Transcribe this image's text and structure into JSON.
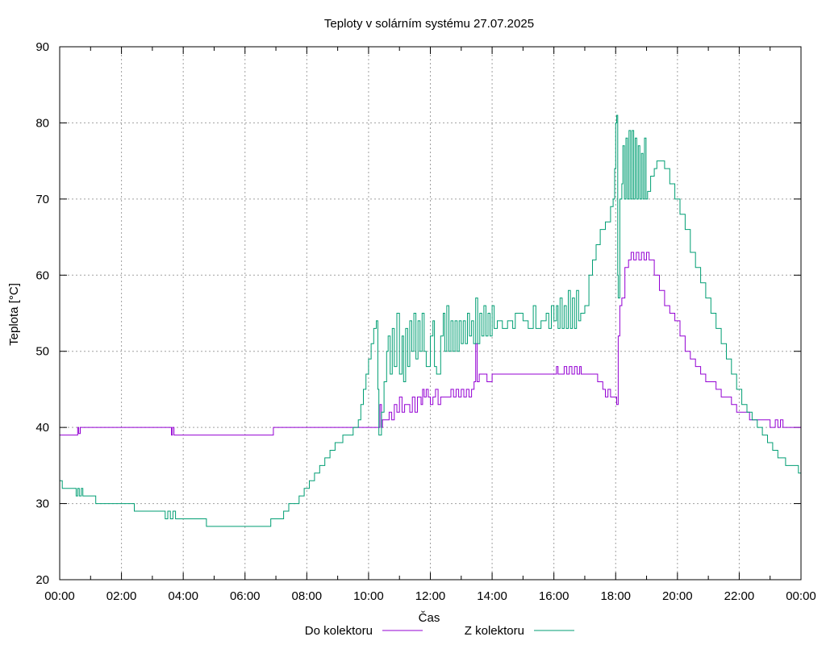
{
  "chart_data": {
    "type": "line",
    "title": "Teploty v solárním systému 27.07.2025",
    "xlabel": "Čas",
    "ylabel": "Teplota [°C]",
    "xlim": [
      "00:00",
      "24:00"
    ],
    "ylim": [
      20,
      90
    ],
    "x_ticks": [
      "00:00",
      "02:00",
      "04:00",
      "06:00",
      "08:00",
      "10:00",
      "12:00",
      "14:00",
      "16:00",
      "18:00",
      "20:00",
      "22:00",
      "00:00"
    ],
    "y_ticks": [
      20,
      30,
      40,
      50,
      60,
      70,
      80,
      90
    ],
    "grid": true,
    "legend_position": "bottom-center",
    "series": [
      {
        "name": "Do kolektoru",
        "color": "#9400d3",
        "points": [
          [
            "00:00",
            39
          ],
          [
            "00:32",
            39
          ],
          [
            "00:35",
            40
          ],
          [
            "00:37",
            39.2
          ],
          [
            "00:40",
            40
          ],
          [
            "03:35",
            40
          ],
          [
            "03:37",
            39
          ],
          [
            "03:39",
            40
          ],
          [
            "03:42",
            39
          ],
          [
            "03:45",
            39
          ],
          [
            "06:50",
            39
          ],
          [
            "06:55",
            40
          ],
          [
            "10:20",
            40
          ],
          [
            "10:22",
            43
          ],
          [
            "10:25",
            40
          ],
          [
            "10:27",
            41
          ],
          [
            "10:40",
            42
          ],
          [
            "10:45",
            41
          ],
          [
            "10:50",
            43
          ],
          [
            "10:55",
            42
          ],
          [
            "11:00",
            44
          ],
          [
            "11:05",
            42
          ],
          [
            "11:10",
            43
          ],
          [
            "11:20",
            42
          ],
          [
            "11:25",
            44
          ],
          [
            "11:30",
            42
          ],
          [
            "11:35",
            44
          ],
          [
            "11:42",
            43
          ],
          [
            "11:45",
            45
          ],
          [
            "11:48",
            44
          ],
          [
            "11:52",
            45
          ],
          [
            "11:56",
            44
          ],
          [
            "12:00",
            43
          ],
          [
            "12:05",
            44
          ],
          [
            "12:10",
            45
          ],
          [
            "12:15",
            43
          ],
          [
            "12:20",
            44
          ],
          [
            "12:40",
            45
          ],
          [
            "12:45",
            44
          ],
          [
            "12:50",
            45
          ],
          [
            "12:55",
            44
          ],
          [
            "13:00",
            45
          ],
          [
            "13:05",
            44
          ],
          [
            "13:10",
            45
          ],
          [
            "13:15",
            44
          ],
          [
            "13:20",
            45
          ],
          [
            "13:25",
            46
          ],
          [
            "13:28",
            51
          ],
          [
            "13:31",
            46
          ],
          [
            "13:35",
            47
          ],
          [
            "13:50",
            46
          ],
          [
            "14:00",
            47
          ],
          [
            "16:00",
            47
          ],
          [
            "16:05",
            48
          ],
          [
            "16:08",
            47
          ],
          [
            "16:15",
            47
          ],
          [
            "16:20",
            48
          ],
          [
            "16:25",
            47
          ],
          [
            "16:30",
            48
          ],
          [
            "16:35",
            47
          ],
          [
            "16:40",
            48
          ],
          [
            "16:45",
            47
          ],
          [
            "16:50",
            48
          ],
          [
            "16:53",
            47
          ],
          [
            "17:20",
            47
          ],
          [
            "17:25",
            46
          ],
          [
            "17:35",
            45
          ],
          [
            "17:40",
            44
          ],
          [
            "17:45",
            45
          ],
          [
            "17:50",
            44
          ],
          [
            "18:00",
            44
          ],
          [
            "18:02",
            43
          ],
          [
            "18:05",
            52
          ],
          [
            "18:08",
            56
          ],
          [
            "18:12",
            57
          ],
          [
            "18:18",
            61
          ],
          [
            "18:25",
            62
          ],
          [
            "18:30",
            63
          ],
          [
            "18:35",
            62
          ],
          [
            "18:40",
            63
          ],
          [
            "18:45",
            62
          ],
          [
            "18:50",
            63
          ],
          [
            "18:55",
            62
          ],
          [
            "19:00",
            63
          ],
          [
            "19:05",
            62
          ],
          [
            "19:15",
            60
          ],
          [
            "19:25",
            58
          ],
          [
            "19:35",
            56
          ],
          [
            "19:45",
            55
          ],
          [
            "19:55",
            54
          ],
          [
            "20:05",
            52
          ],
          [
            "20:15",
            50
          ],
          [
            "20:25",
            49
          ],
          [
            "20:35",
            48
          ],
          [
            "20:45",
            47
          ],
          [
            "20:55",
            46
          ],
          [
            "21:05",
            46
          ],
          [
            "21:15",
            45
          ],
          [
            "21:25",
            44
          ],
          [
            "21:35",
            44
          ],
          [
            "21:45",
            43
          ],
          [
            "21:55",
            42
          ],
          [
            "22:15",
            42
          ],
          [
            "22:20",
            41
          ],
          [
            "22:50",
            41
          ],
          [
            "23:00",
            40
          ],
          [
            "23:10",
            41
          ],
          [
            "23:15",
            40
          ],
          [
            "23:20",
            41
          ],
          [
            "23:25",
            40
          ],
          [
            "24:00",
            40
          ]
        ]
      },
      {
        "name": "Z kolektoru",
        "color": "#009e73",
        "points": [
          [
            "00:00",
            33
          ],
          [
            "00:05",
            32
          ],
          [
            "00:30",
            32
          ],
          [
            "00:32",
            31
          ],
          [
            "00:35",
            32
          ],
          [
            "00:38",
            31
          ],
          [
            "00:42",
            32
          ],
          [
            "00:45",
            31
          ],
          [
            "01:05",
            31
          ],
          [
            "01:10",
            30
          ],
          [
            "02:20",
            30
          ],
          [
            "02:25",
            29
          ],
          [
            "03:20",
            29
          ],
          [
            "03:25",
            28
          ],
          [
            "03:30",
            29
          ],
          [
            "03:35",
            28
          ],
          [
            "03:40",
            29
          ],
          [
            "03:45",
            28
          ],
          [
            "04:40",
            28
          ],
          [
            "04:45",
            27
          ],
          [
            "06:45",
            27
          ],
          [
            "06:50",
            28
          ],
          [
            "07:10",
            28
          ],
          [
            "07:15",
            29
          ],
          [
            "07:25",
            30
          ],
          [
            "07:45",
            31
          ],
          [
            "07:55",
            32
          ],
          [
            "08:05",
            33
          ],
          [
            "08:15",
            34
          ],
          [
            "08:25",
            35
          ],
          [
            "08:35",
            36
          ],
          [
            "08:45",
            37
          ],
          [
            "08:55",
            38
          ],
          [
            "09:10",
            39
          ],
          [
            "09:30",
            40
          ],
          [
            "09:40",
            41
          ],
          [
            "09:45",
            43
          ],
          [
            "09:50",
            45
          ],
          [
            "09:55",
            47
          ],
          [
            "10:00",
            49
          ],
          [
            "10:05",
            51
          ],
          [
            "10:10",
            53
          ],
          [
            "10:15",
            54
          ],
          [
            "10:18",
            45
          ],
          [
            "10:20",
            39
          ],
          [
            "10:25",
            42
          ],
          [
            "10:30",
            46
          ],
          [
            "10:35",
            50
          ],
          [
            "10:38",
            52
          ],
          [
            "10:42",
            47
          ],
          [
            "10:46",
            53
          ],
          [
            "10:50",
            48
          ],
          [
            "10:55",
            55
          ],
          [
            "11:00",
            47
          ],
          [
            "11:05",
            52
          ],
          [
            "11:08",
            46
          ],
          [
            "11:12",
            53
          ],
          [
            "11:16",
            48
          ],
          [
            "11:20",
            54
          ],
          [
            "11:24",
            50
          ],
          [
            "11:28",
            55
          ],
          [
            "11:32",
            49
          ],
          [
            "11:36",
            54
          ],
          [
            "11:40",
            50
          ],
          [
            "11:44",
            55
          ],
          [
            "11:48",
            50
          ],
          [
            "11:52",
            48
          ],
          [
            "12:00",
            52
          ],
          [
            "12:05",
            54
          ],
          [
            "12:08",
            48
          ],
          [
            "12:12",
            47
          ],
          [
            "12:20",
            52
          ],
          [
            "12:25",
            55
          ],
          [
            "12:28",
            50
          ],
          [
            "12:32",
            56
          ],
          [
            "12:36",
            50
          ],
          [
            "12:40",
            54
          ],
          [
            "12:44",
            50
          ],
          [
            "12:48",
            54
          ],
          [
            "12:52",
            50
          ],
          [
            "12:56",
            54
          ],
          [
            "13:00",
            51
          ],
          [
            "13:04",
            54
          ],
          [
            "13:08",
            51
          ],
          [
            "13:12",
            55
          ],
          [
            "13:16",
            52
          ],
          [
            "13:20",
            54
          ],
          [
            "13:24",
            51
          ],
          [
            "13:28",
            57
          ],
          [
            "13:32",
            51
          ],
          [
            "13:36",
            55
          ],
          [
            "13:40",
            52
          ],
          [
            "13:44",
            56
          ],
          [
            "13:48",
            52
          ],
          [
            "13:52",
            55
          ],
          [
            "13:56",
            52
          ],
          [
            "14:00",
            56
          ],
          [
            "14:04",
            53
          ],
          [
            "14:10",
            54
          ],
          [
            "14:20",
            53
          ],
          [
            "14:30",
            54
          ],
          [
            "14:40",
            53
          ],
          [
            "14:45",
            55
          ],
          [
            "15:00",
            54
          ],
          [
            "15:10",
            53
          ],
          [
            "15:20",
            56
          ],
          [
            "15:25",
            53
          ],
          [
            "15:35",
            54
          ],
          [
            "15:45",
            55
          ],
          [
            "15:50",
            53
          ],
          [
            "15:55",
            56
          ],
          [
            "16:00",
            54
          ],
          [
            "16:05",
            56
          ],
          [
            "16:08",
            53
          ],
          [
            "16:12",
            57
          ],
          [
            "16:16",
            53
          ],
          [
            "16:20",
            56
          ],
          [
            "16:24",
            53
          ],
          [
            "16:28",
            58
          ],
          [
            "16:32",
            53
          ],
          [
            "16:36",
            57
          ],
          [
            "16:40",
            53
          ],
          [
            "16:44",
            58
          ],
          [
            "16:48",
            54
          ],
          [
            "16:52",
            55
          ],
          [
            "17:00",
            56
          ],
          [
            "17:08",
            60
          ],
          [
            "17:15",
            62
          ],
          [
            "17:22",
            64
          ],
          [
            "17:30",
            66
          ],
          [
            "17:40",
            67
          ],
          [
            "17:50",
            69
          ],
          [
            "17:55",
            70
          ],
          [
            "17:58",
            74
          ],
          [
            "18:00",
            80
          ],
          [
            "18:02",
            81
          ],
          [
            "18:04",
            60
          ],
          [
            "18:05",
            57
          ],
          [
            "18:08",
            70
          ],
          [
            "18:12",
            72
          ],
          [
            "18:14",
            77
          ],
          [
            "18:17",
            70
          ],
          [
            "18:20",
            78
          ],
          [
            "18:23",
            70
          ],
          [
            "18:26",
            79
          ],
          [
            "18:29",
            70
          ],
          [
            "18:32",
            79
          ],
          [
            "18:35",
            70
          ],
          [
            "18:38",
            78
          ],
          [
            "18:41",
            70
          ],
          [
            "18:44",
            77
          ],
          [
            "18:47",
            70
          ],
          [
            "18:50",
            76
          ],
          [
            "18:53",
            70
          ],
          [
            "18:56",
            78
          ],
          [
            "18:59",
            70
          ],
          [
            "19:02",
            71
          ],
          [
            "19:08",
            73
          ],
          [
            "19:15",
            74
          ],
          [
            "19:20",
            75
          ],
          [
            "19:28",
            75
          ],
          [
            "19:35",
            74
          ],
          [
            "19:45",
            72
          ],
          [
            "19:55",
            70
          ],
          [
            "20:05",
            68
          ],
          [
            "20:15",
            66
          ],
          [
            "20:25",
            63
          ],
          [
            "20:35",
            61
          ],
          [
            "20:45",
            59
          ],
          [
            "20:55",
            57
          ],
          [
            "21:05",
            55
          ],
          [
            "21:15",
            53
          ],
          [
            "21:25",
            51
          ],
          [
            "21:35",
            49
          ],
          [
            "21:45",
            47
          ],
          [
            "21:55",
            45
          ],
          [
            "22:05",
            43
          ],
          [
            "22:15",
            42
          ],
          [
            "22:25",
            41
          ],
          [
            "22:35",
            40
          ],
          [
            "22:45",
            39
          ],
          [
            "22:55",
            38
          ],
          [
            "23:05",
            37
          ],
          [
            "23:15",
            36
          ],
          [
            "23:30",
            35
          ],
          [
            "23:45",
            35
          ],
          [
            "23:55",
            34
          ],
          [
            "24:00",
            34
          ]
        ]
      }
    ]
  }
}
